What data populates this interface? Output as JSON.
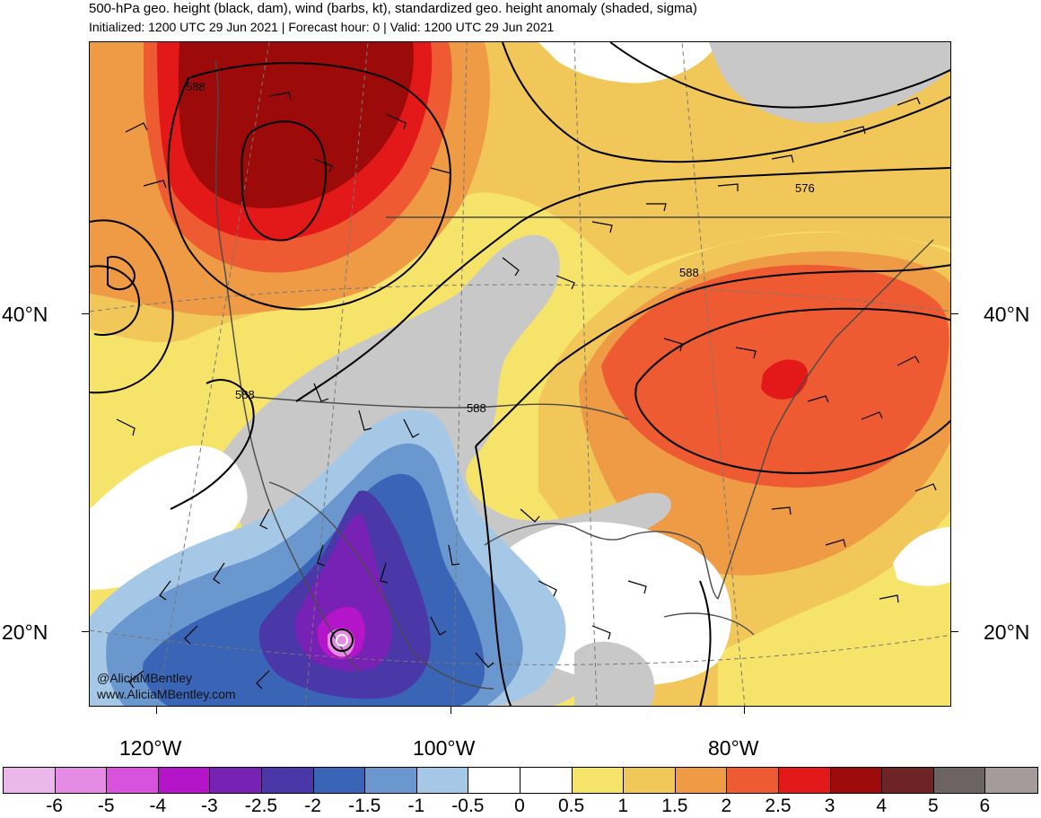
{
  "title": "500-hPa geo. height (black, dam), wind (barbs, kt), standardized geo. height anomaly (shaded, sigma)",
  "subtitle": "Initialized: 1200 UTC 29 Jun 2021 | Forecast hour: 0 | Valid: 1200 UTC 29 Jun 2021",
  "lat_labels": {
    "n40": "40°N",
    "n20": "20°N"
  },
  "lon_labels": {
    "w120": "120°W",
    "w100": "100°W",
    "w80": "80°W"
  },
  "contour_labels": {
    "c588a": "588",
    "c588b": "588",
    "c588c": "588",
    "c588d": "588",
    "c576": "576"
  },
  "credit": {
    "handle": "@AliciaMBentley",
    "site": "www.AliciaMBentley.com"
  },
  "colorbar": {
    "colors": [
      "#ebb8eb",
      "#e58ae5",
      "#d852db",
      "#b415c8",
      "#7722b4",
      "#4a38a9",
      "#3a64b6",
      "#6b97cf",
      "#a5c8e6",
      "#ffffff",
      "#ffffff",
      "#f6e46a",
      "#f2c75a",
      "#ef9a45",
      "#ee5a32",
      "#e31919",
      "#9c0a0a",
      "#6e2424",
      "#6e6363",
      "#a69b9b"
    ],
    "labels": [
      "-6",
      "-5",
      "-4",
      "-3",
      "-2.5",
      "-2",
      "-1.5",
      "-1",
      "-0.5",
      "0",
      "0.5",
      "1",
      "1.5",
      "2",
      "2.5",
      "3",
      "4",
      "5",
      "6"
    ]
  }
}
